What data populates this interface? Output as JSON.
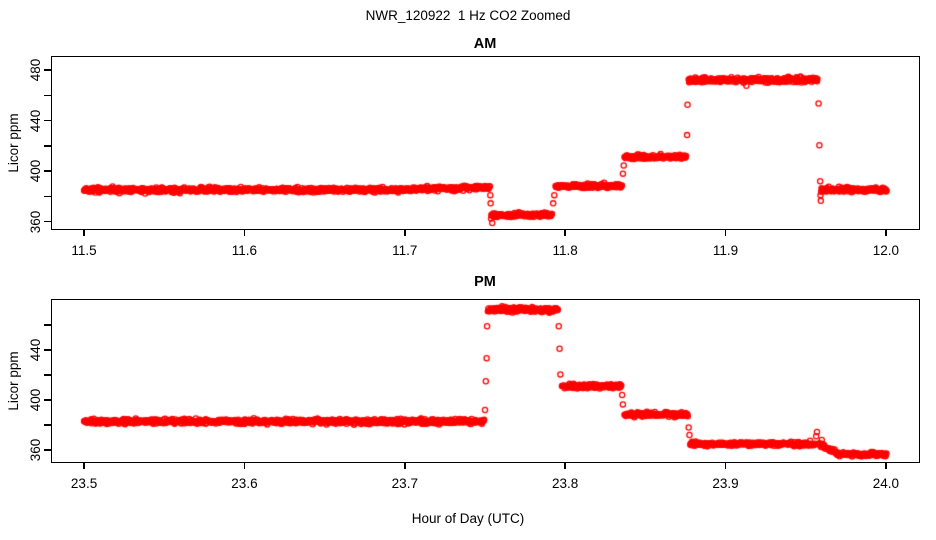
{
  "figure_title": "NWR_120922  1 Hz CO2 Zoomed",
  "point_color": "#FF0000",
  "chart_data": [
    {
      "type": "scatter",
      "title": "AM",
      "xlabel": "",
      "ylabel": "Licor ppm",
      "xlim": [
        11.48,
        12.02
      ],
      "ylim": [
        355.0,
        490.3
      ],
      "grid": false,
      "xticks": [
        {
          "v": 11.5,
          "label": "11.5"
        },
        {
          "v": 11.6,
          "label": "11.6"
        },
        {
          "v": 11.7,
          "label": "11.7"
        },
        {
          "v": 11.8,
          "label": "11.8"
        },
        {
          "v": 11.9,
          "label": "11.9"
        },
        {
          "v": 12.0,
          "label": "12.0"
        }
      ],
      "yticks": [
        {
          "v": 360,
          "label": "360"
        },
        {
          "v": 380,
          "label": ""
        },
        {
          "v": 400,
          "label": "400"
        },
        {
          "v": 420,
          "label": ""
        },
        {
          "v": 440,
          "label": "440"
        },
        {
          "v": 460,
          "label": ""
        },
        {
          "v": 480,
          "label": "480"
        }
      ],
      "series": [
        {
          "marker": "open-circle",
          "color": "#FF0000",
          "sample_rate_hz": 1,
          "segments": [
            {
              "t0": 11.5,
              "t1": 11.7,
              "v0": 385.2,
              "v1": 385.2,
              "noise": 0.9
            },
            {
              "t0": 11.7,
              "t1": 11.7532,
              "v0": 385.4,
              "v1": 387.3,
              "noise": 0.9
            },
            {
              "t0": 11.754,
              "t1": 11.792,
              "v0": 365.3,
              "v1": 365.3,
              "noise": 0.8
            },
            {
              "t0": 11.794,
              "t1": 11.8355,
              "v0": 388.2,
              "v1": 388.2,
              "noise": 0.8
            },
            {
              "t0": 11.837,
              "t1": 11.8755,
              "v0": 411.2,
              "v1": 411.2,
              "noise": 0.8
            },
            {
              "t0": 11.877,
              "t1": 11.9575,
              "v0": 472.3,
              "v1": 472.3,
              "noise": 1.0
            },
            {
              "t0": 11.9596,
              "t1": 12.0005,
              "v0": 385.2,
              "v1": 385.2,
              "noise": 0.9
            }
          ],
          "transition_points": [
            [
              11.7533,
              381.0
            ],
            [
              11.7535,
              374.5
            ],
            [
              11.7538,
              362.5
            ],
            [
              11.7545,
              359.0
            ],
            [
              11.7925,
              374.5
            ],
            [
              11.7932,
              381.0
            ],
            [
              11.836,
              398.0
            ],
            [
              11.8365,
              404.5
            ],
            [
              11.876,
              428.5
            ],
            [
              11.8763,
              452.5
            ],
            [
              11.913,
              467.5
            ],
            [
              11.958,
              453.5
            ],
            [
              11.9585,
              420.5
            ],
            [
              11.959,
              392.0
            ],
            [
              11.9592,
              381.0
            ],
            [
              11.9594,
              376.5
            ]
          ]
        }
      ]
    },
    {
      "type": "scatter",
      "title": "PM",
      "xlabel": "Hour of Day (UTC)",
      "ylabel": "Licor ppm",
      "xlim": [
        23.48,
        24.02
      ],
      "ylim": [
        351.2,
        480.0
      ],
      "grid": false,
      "xticks": [
        {
          "v": 23.5,
          "label": "23.5"
        },
        {
          "v": 23.6,
          "label": "23.6"
        },
        {
          "v": 23.7,
          "label": "23.7"
        },
        {
          "v": 23.8,
          "label": "23.8"
        },
        {
          "v": 23.9,
          "label": "23.9"
        },
        {
          "v": 24.0,
          "label": "24.0"
        }
      ],
      "yticks": [
        {
          "v": 360,
          "label": "360"
        },
        {
          "v": 380,
          "label": ""
        },
        {
          "v": 400,
          "label": "400"
        },
        {
          "v": 420,
          "label": ""
        },
        {
          "v": 440,
          "label": "440"
        },
        {
          "v": 460,
          "label": ""
        }
      ],
      "series": [
        {
          "marker": "open-circle",
          "color": "#FF0000",
          "sample_rate_hz": 1,
          "segments": [
            {
              "t0": 23.5,
              "t1": 23.7495,
              "v0": 382.8,
              "v1": 382.8,
              "noise": 0.9
            },
            {
              "t0": 23.7518,
              "t1": 23.7955,
              "v0": 472.3,
              "v1": 472.3,
              "noise": 1.0
            },
            {
              "t0": 23.798,
              "t1": 23.835,
              "v0": 411.0,
              "v1": 411.0,
              "noise": 0.8
            },
            {
              "t0": 23.837,
              "t1": 23.8765,
              "v0": 388.3,
              "v1": 388.3,
              "noise": 0.8
            },
            {
              "t0": 23.878,
              "t1": 23.956,
              "v0": 364.8,
              "v1": 364.8,
              "noise": 0.8
            },
            {
              "t0": 23.958,
              "t1": 23.97,
              "v0": 365.0,
              "v1": 357.2,
              "noise": 0.7
            },
            {
              "t0": 23.97,
              "t1": 24.0005,
              "v0": 356.6,
              "v1": 356.6,
              "noise": 0.7
            }
          ],
          "transition_points": [
            [
              23.75,
              392.0
            ],
            [
              23.7505,
              415.0
            ],
            [
              23.751,
              433.5
            ],
            [
              23.7513,
              459.0
            ],
            [
              23.796,
              459.0
            ],
            [
              23.7965,
              441.0
            ],
            [
              23.797,
              420.5
            ],
            [
              23.8355,
              404.0
            ],
            [
              23.836,
              396.5
            ],
            [
              23.877,
              378.0
            ],
            [
              23.8775,
              372.0
            ],
            [
              23.9565,
              371.0
            ],
            [
              23.957,
              374.5
            ],
            [
              23.96,
              368.0
            ]
          ]
        }
      ]
    }
  ]
}
